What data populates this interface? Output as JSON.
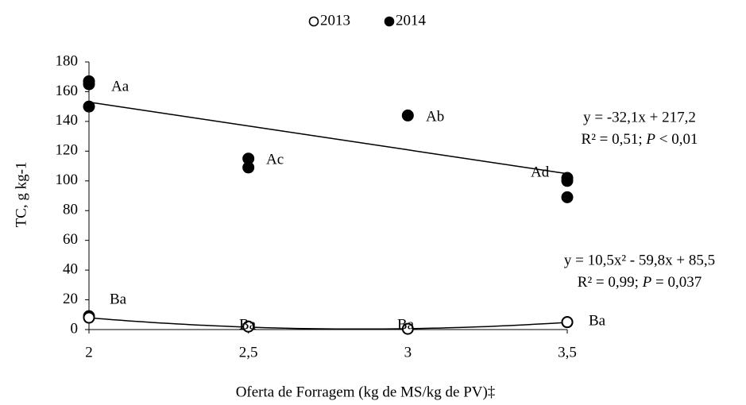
{
  "chart_data": {
    "type": "scatter",
    "xlabel": "Oferta de Forragem (kg de MS/kg de PV)‡",
    "ylabel": "TC, g kg-1",
    "xlim": [
      2,
      3.5
    ],
    "xticks": [
      2,
      {
        "value": 2.5,
        "label": "2,5"
      },
      3,
      {
        "value": 3.5,
        "label": "3,5"
      }
    ],
    "ylim": [
      0,
      180
    ],
    "yticks": [
      0,
      20,
      40,
      60,
      80,
      100,
      120,
      140,
      160,
      180
    ],
    "legend": "top",
    "series": [
      {
        "name": "2013",
        "color": "#000000",
        "filled": false,
        "x": [
          2,
          2,
          2.5,
          2.5,
          3,
          3.5,
          3.5
        ],
        "values": [
          9,
          8,
          2,
          2,
          0.5,
          5,
          5
        ],
        "annotations": [
          "Ba",
          "Ba",
          "Ba",
          "Ba"
        ],
        "trendline": {
          "coefficients": [
            10.5,
            -59.8,
            85.5
          ],
          "equation": "y = 10,5x² - 59,8x + 85,5",
          "r2_text": "R² = 0,99; ",
          "p_symbol": "P",
          "p_text": " = 0,037"
        }
      },
      {
        "name": "2014",
        "color": "#000000",
        "filled": true,
        "x": [
          2,
          2,
          2,
          2.5,
          2.5,
          3,
          3.5,
          3.5,
          3.5
        ],
        "values": [
          167,
          165,
          150,
          115,
          109,
          144,
          102,
          100,
          89
        ],
        "annotations": [
          "Aa",
          "Ac",
          "Ab",
          "Ad"
        ],
        "trendline": {
          "coefficients": [
            -32.1,
            217.2
          ],
          "equation": "y = -32,1x + 217,2",
          "r2_text": "R² = 0,51; ",
          "p_symbol": "P",
          "p_text": " < 0,01"
        }
      }
    ]
  }
}
